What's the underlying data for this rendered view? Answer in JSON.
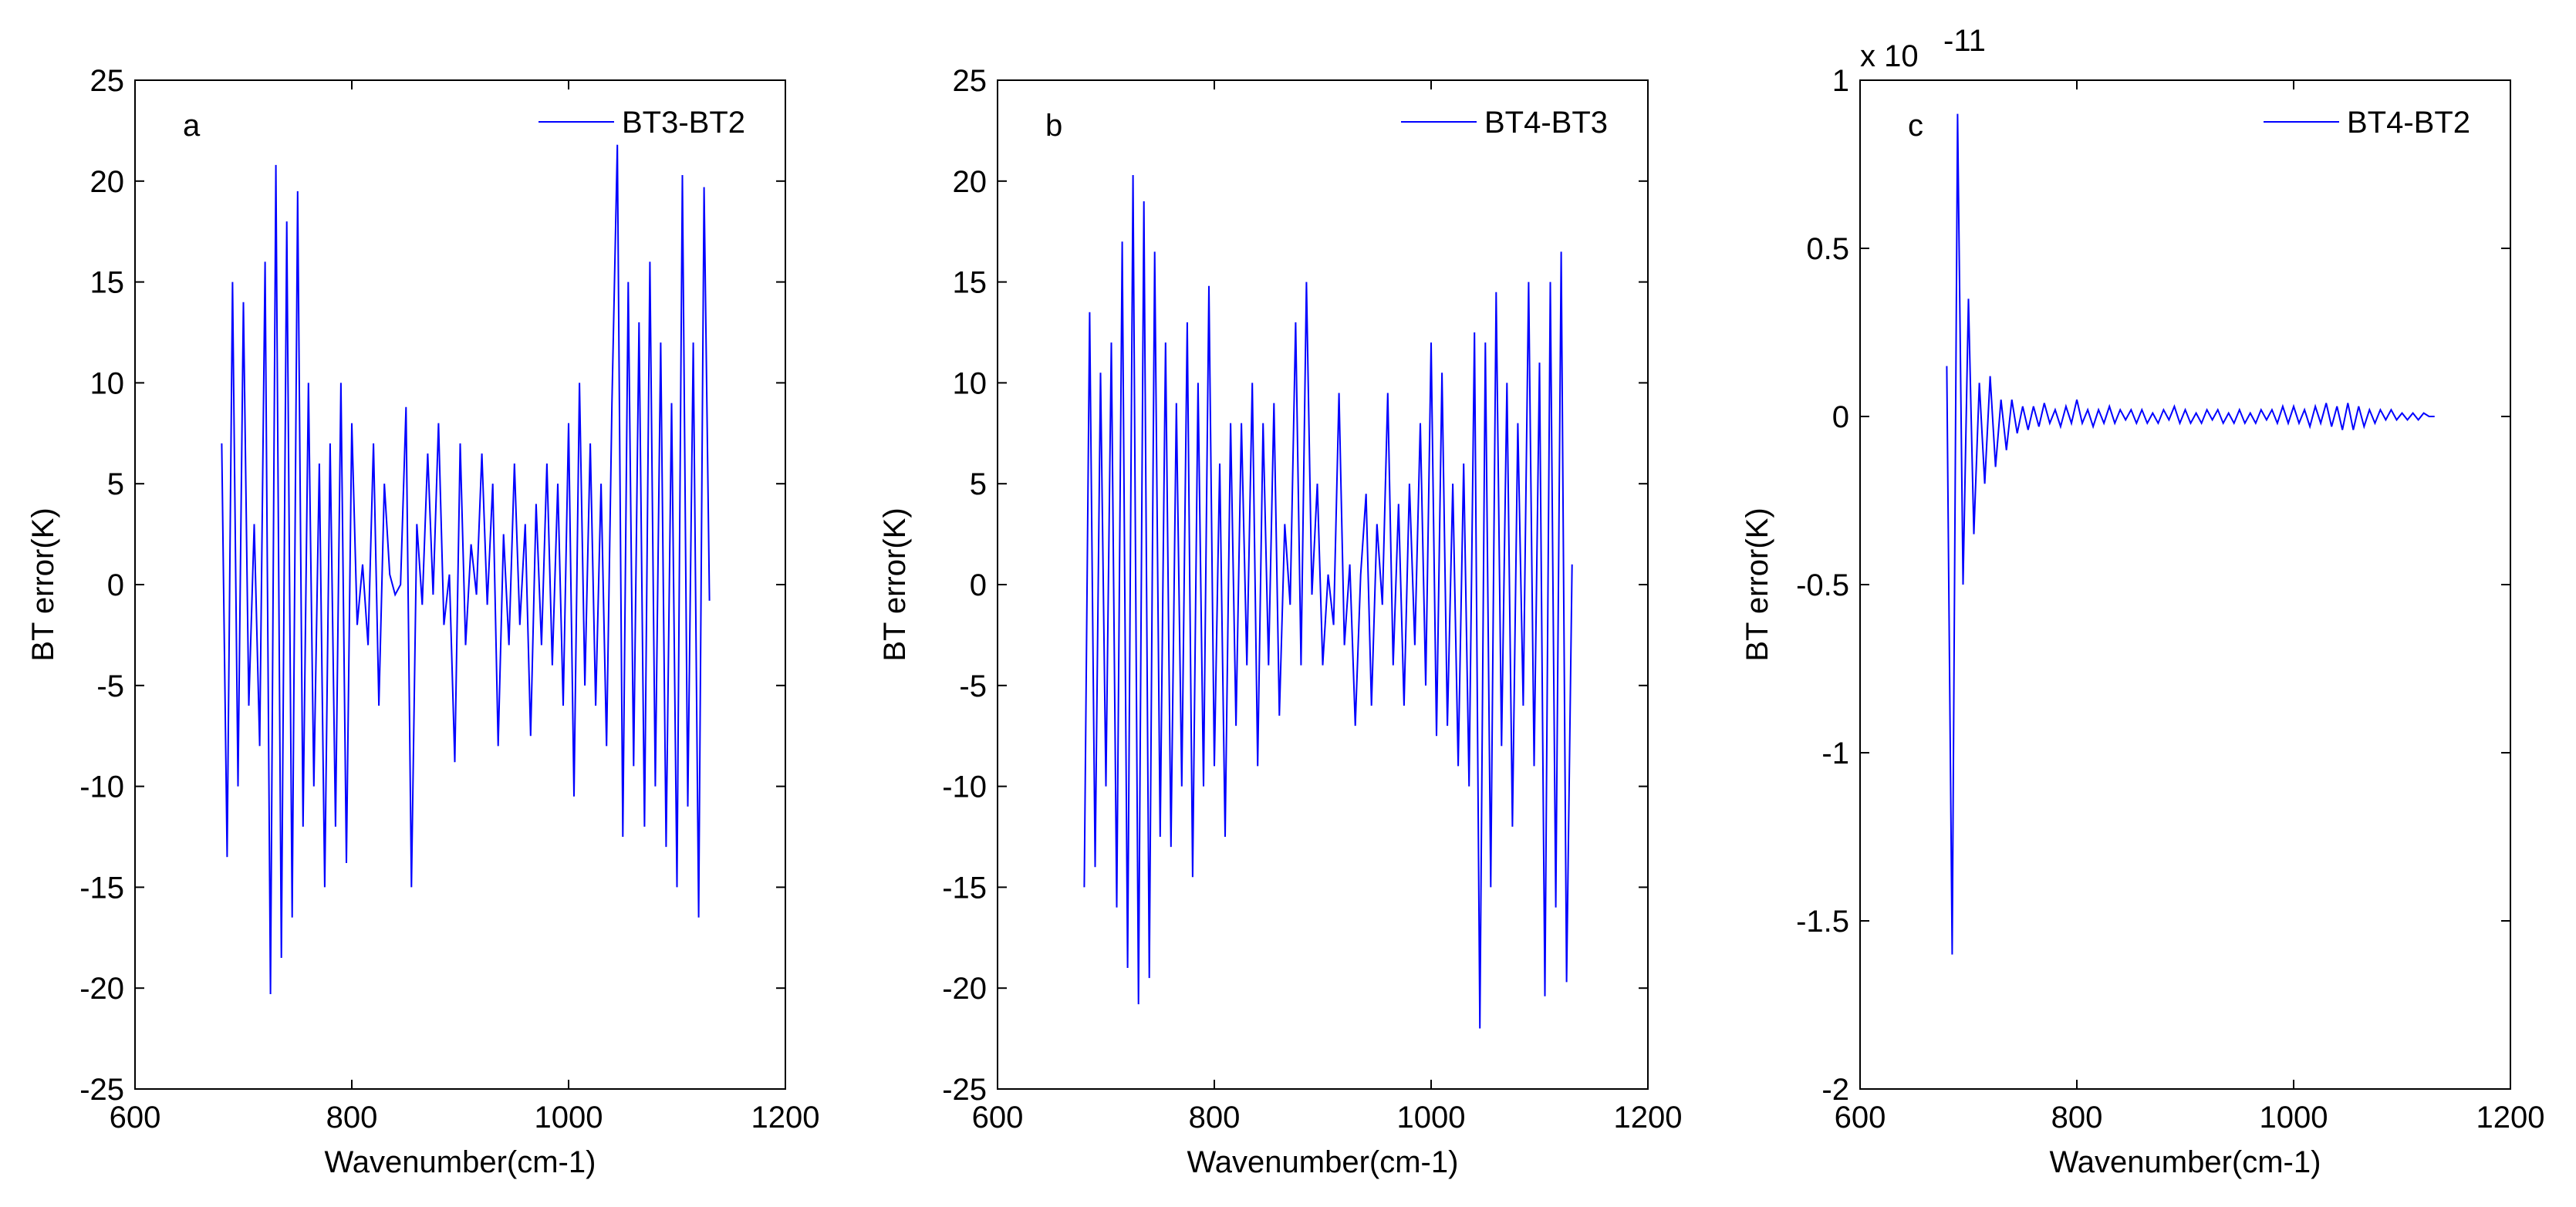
{
  "chart_data": [
    {
      "type": "line",
      "panel_label": "a",
      "xlabel": "Wavenumber(cm-1)",
      "ylabel": "BT error(K)",
      "xlim": [
        600,
        1200
      ],
      "xticks": [
        600,
        800,
        1000,
        1200
      ],
      "ylim": [
        -25,
        25
      ],
      "yticks": [
        -25,
        -20,
        -15,
        -10,
        -5,
        0,
        5,
        10,
        15,
        20,
        25
      ],
      "legend": "upper right",
      "x": [
        680,
        685,
        690,
        695,
        700,
        705,
        710,
        715,
        720,
        725,
        730,
        735,
        740,
        745,
        750,
        755,
        760,
        765,
        770,
        775,
        780,
        785,
        790,
        795,
        800,
        805,
        810,
        815,
        820,
        825,
        830,
        835,
        840,
        845,
        850,
        855,
        860,
        865,
        870,
        875,
        880,
        885,
        890,
        895,
        900,
        905,
        910,
        915,
        920,
        925,
        930,
        935,
        940,
        945,
        950,
        955,
        960,
        965,
        970,
        975,
        980,
        985,
        990,
        995,
        1000,
        1005,
        1010,
        1015,
        1020,
        1025,
        1030,
        1035,
        1040,
        1045,
        1050,
        1055,
        1060,
        1065,
        1070,
        1075,
        1080,
        1085,
        1090,
        1095,
        1100,
        1105,
        1110,
        1115,
        1120,
        1125,
        1130
      ],
      "series": [
        {
          "name": "BT3-BT2",
          "color": "#0000ff",
          "values": [
            7,
            -13.5,
            15,
            -10,
            14,
            -6,
            3,
            -8,
            16,
            -20.3,
            20.8,
            -18.5,
            18,
            -16.5,
            19.5,
            -12,
            10,
            -10,
            6,
            -15,
            7,
            -12,
            10,
            -13.8,
            8,
            -2,
            1,
            -3,
            7,
            -6,
            5,
            0.5,
            -0.5,
            0,
            8.8,
            -15,
            3,
            -1,
            6.5,
            -0.5,
            8,
            -2,
            0.5,
            -8.8,
            7,
            -3,
            2,
            -0.5,
            6.5,
            -1,
            5,
            -8,
            2.5,
            -3,
            6,
            -2,
            3,
            -7.5,
            4,
            -3,
            6,
            -4,
            5,
            -6,
            8,
            -10.5,
            10,
            -5,
            7,
            -6,
            5,
            -8,
            9,
            21.8,
            -12.5,
            15,
            -9,
            13,
            -12,
            16,
            -10,
            12,
            -13,
            9,
            -15,
            20.3,
            -11,
            12,
            -16.5,
            19.7,
            -0.8
          ]
        }
      ]
    },
    {
      "type": "line",
      "panel_label": "b",
      "xlabel": "Wavenumber(cm-1)",
      "ylabel": "BT error(K)",
      "xlim": [
        600,
        1200
      ],
      "xticks": [
        600,
        800,
        1000,
        1200
      ],
      "ylim": [
        -25,
        25
      ],
      "yticks": [
        -25,
        -20,
        -15,
        -10,
        -5,
        0,
        5,
        10,
        15,
        20,
        25
      ],
      "legend": "upper right",
      "x": [
        680,
        685,
        690,
        695,
        700,
        705,
        710,
        715,
        720,
        725,
        730,
        735,
        740,
        745,
        750,
        755,
        760,
        765,
        770,
        775,
        780,
        785,
        790,
        795,
        800,
        805,
        810,
        815,
        820,
        825,
        830,
        835,
        840,
        845,
        850,
        855,
        860,
        865,
        870,
        875,
        880,
        885,
        890,
        895,
        900,
        905,
        910,
        915,
        920,
        925,
        930,
        935,
        940,
        945,
        950,
        955,
        960,
        965,
        970,
        975,
        980,
        985,
        990,
        995,
        1000,
        1005,
        1010,
        1015,
        1020,
        1025,
        1030,
        1035,
        1040,
        1045,
        1050,
        1055,
        1060,
        1065,
        1070,
        1075,
        1080,
        1085,
        1090,
        1095,
        1100,
        1105,
        1110,
        1115,
        1120,
        1125,
        1130
      ],
      "series": [
        {
          "name": "BT4-BT3",
          "color": "#0000ff",
          "values": [
            -15,
            13.5,
            -14,
            10.5,
            -10,
            12,
            -16,
            17,
            -19,
            20.3,
            -20.8,
            19,
            -19.5,
            16.5,
            -12.5,
            12,
            -13,
            9,
            -10,
            13,
            -14.5,
            10,
            -10,
            14.8,
            -9,
            6,
            -12.5,
            8,
            -7,
            8,
            -4,
            10,
            -9,
            8,
            -4,
            9,
            -6.5,
            3,
            -1,
            13,
            -4,
            15,
            -0.5,
            5,
            -4,
            0.5,
            -2,
            9.5,
            -3,
            1,
            -7,
            0.5,
            4.5,
            -6,
            3,
            -1,
            9.5,
            -4,
            4,
            -6,
            5,
            -3,
            8,
            -5,
            12,
            -7.5,
            10.5,
            -7,
            5,
            -9,
            6,
            -10,
            12.5,
            -22,
            12,
            -15,
            14.5,
            -8,
            10,
            -12,
            8,
            -6,
            15,
            -9,
            11,
            -20.4,
            15,
            -16,
            16.5,
            -19.7,
            1
          ]
        }
      ]
    },
    {
      "type": "line",
      "panel_label": "c",
      "xlabel": "Wavenumber(cm-1)",
      "ylabel": "BT error(K)",
      "scale_label": "x 10",
      "scale_exponent": "-11",
      "xlim": [
        600,
        1200
      ],
      "xticks": [
        600,
        800,
        1000,
        1200
      ],
      "ylim": [
        -2,
        1
      ],
      "yticks": [
        -2,
        -1.5,
        -1,
        -0.5,
        0,
        0.5,
        1
      ],
      "legend": "upper right",
      "x": [
        680,
        685,
        690,
        695,
        700,
        705,
        710,
        715,
        720,
        725,
        730,
        735,
        740,
        745,
        750,
        755,
        760,
        765,
        770,
        775,
        780,
        785,
        790,
        795,
        800,
        805,
        810,
        815,
        820,
        825,
        830,
        835,
        840,
        845,
        850,
        855,
        860,
        865,
        870,
        875,
        880,
        885,
        890,
        895,
        900,
        905,
        910,
        915,
        920,
        925,
        930,
        935,
        940,
        945,
        950,
        955,
        960,
        965,
        970,
        975,
        980,
        985,
        990,
        995,
        1000,
        1005,
        1010,
        1015,
        1020,
        1025,
        1030,
        1035,
        1040,
        1045,
        1050,
        1055,
        1060,
        1065,
        1070,
        1075,
        1080,
        1085,
        1090,
        1095,
        1100,
        1105,
        1110,
        1115,
        1120,
        1125,
        1130
      ],
      "series": [
        {
          "name": "BT4-BT2",
          "color": "#0000ff",
          "values": [
            0.15,
            -1.6,
            0.9,
            -0.5,
            0.35,
            -0.35,
            0.1,
            -0.2,
            0.12,
            -0.15,
            0.05,
            -0.1,
            0.05,
            -0.05,
            0.03,
            -0.04,
            0.03,
            -0.03,
            0.04,
            -0.02,
            0.02,
            -0.03,
            0.03,
            -0.02,
            0.05,
            -0.02,
            0.02,
            -0.03,
            0.02,
            -0.02,
            0.03,
            -0.02,
            0.02,
            -0.01,
            0.02,
            -0.02,
            0.02,
            -0.02,
            0.01,
            -0.02,
            0.02,
            -0.01,
            0.03,
            -0.02,
            0.02,
            -0.02,
            0.01,
            -0.02,
            0.02,
            -0.01,
            0.02,
            -0.02,
            0.01,
            -0.02,
            0.02,
            -0.02,
            0.01,
            -0.02,
            0.02,
            -0.01,
            0.02,
            -0.02,
            0.03,
            -0.02,
            0.03,
            -0.02,
            0.02,
            -0.03,
            0.03,
            -0.02,
            0.04,
            -0.03,
            0.03,
            -0.04,
            0.04,
            -0.04,
            0.03,
            -0.03,
            0.02,
            -0.02,
            0.02,
            -0.01,
            0.02,
            -0.01,
            0.01,
            -0.01,
            0.01,
            -0.01,
            0.01,
            0,
            0
          ]
        }
      ]
    }
  ]
}
